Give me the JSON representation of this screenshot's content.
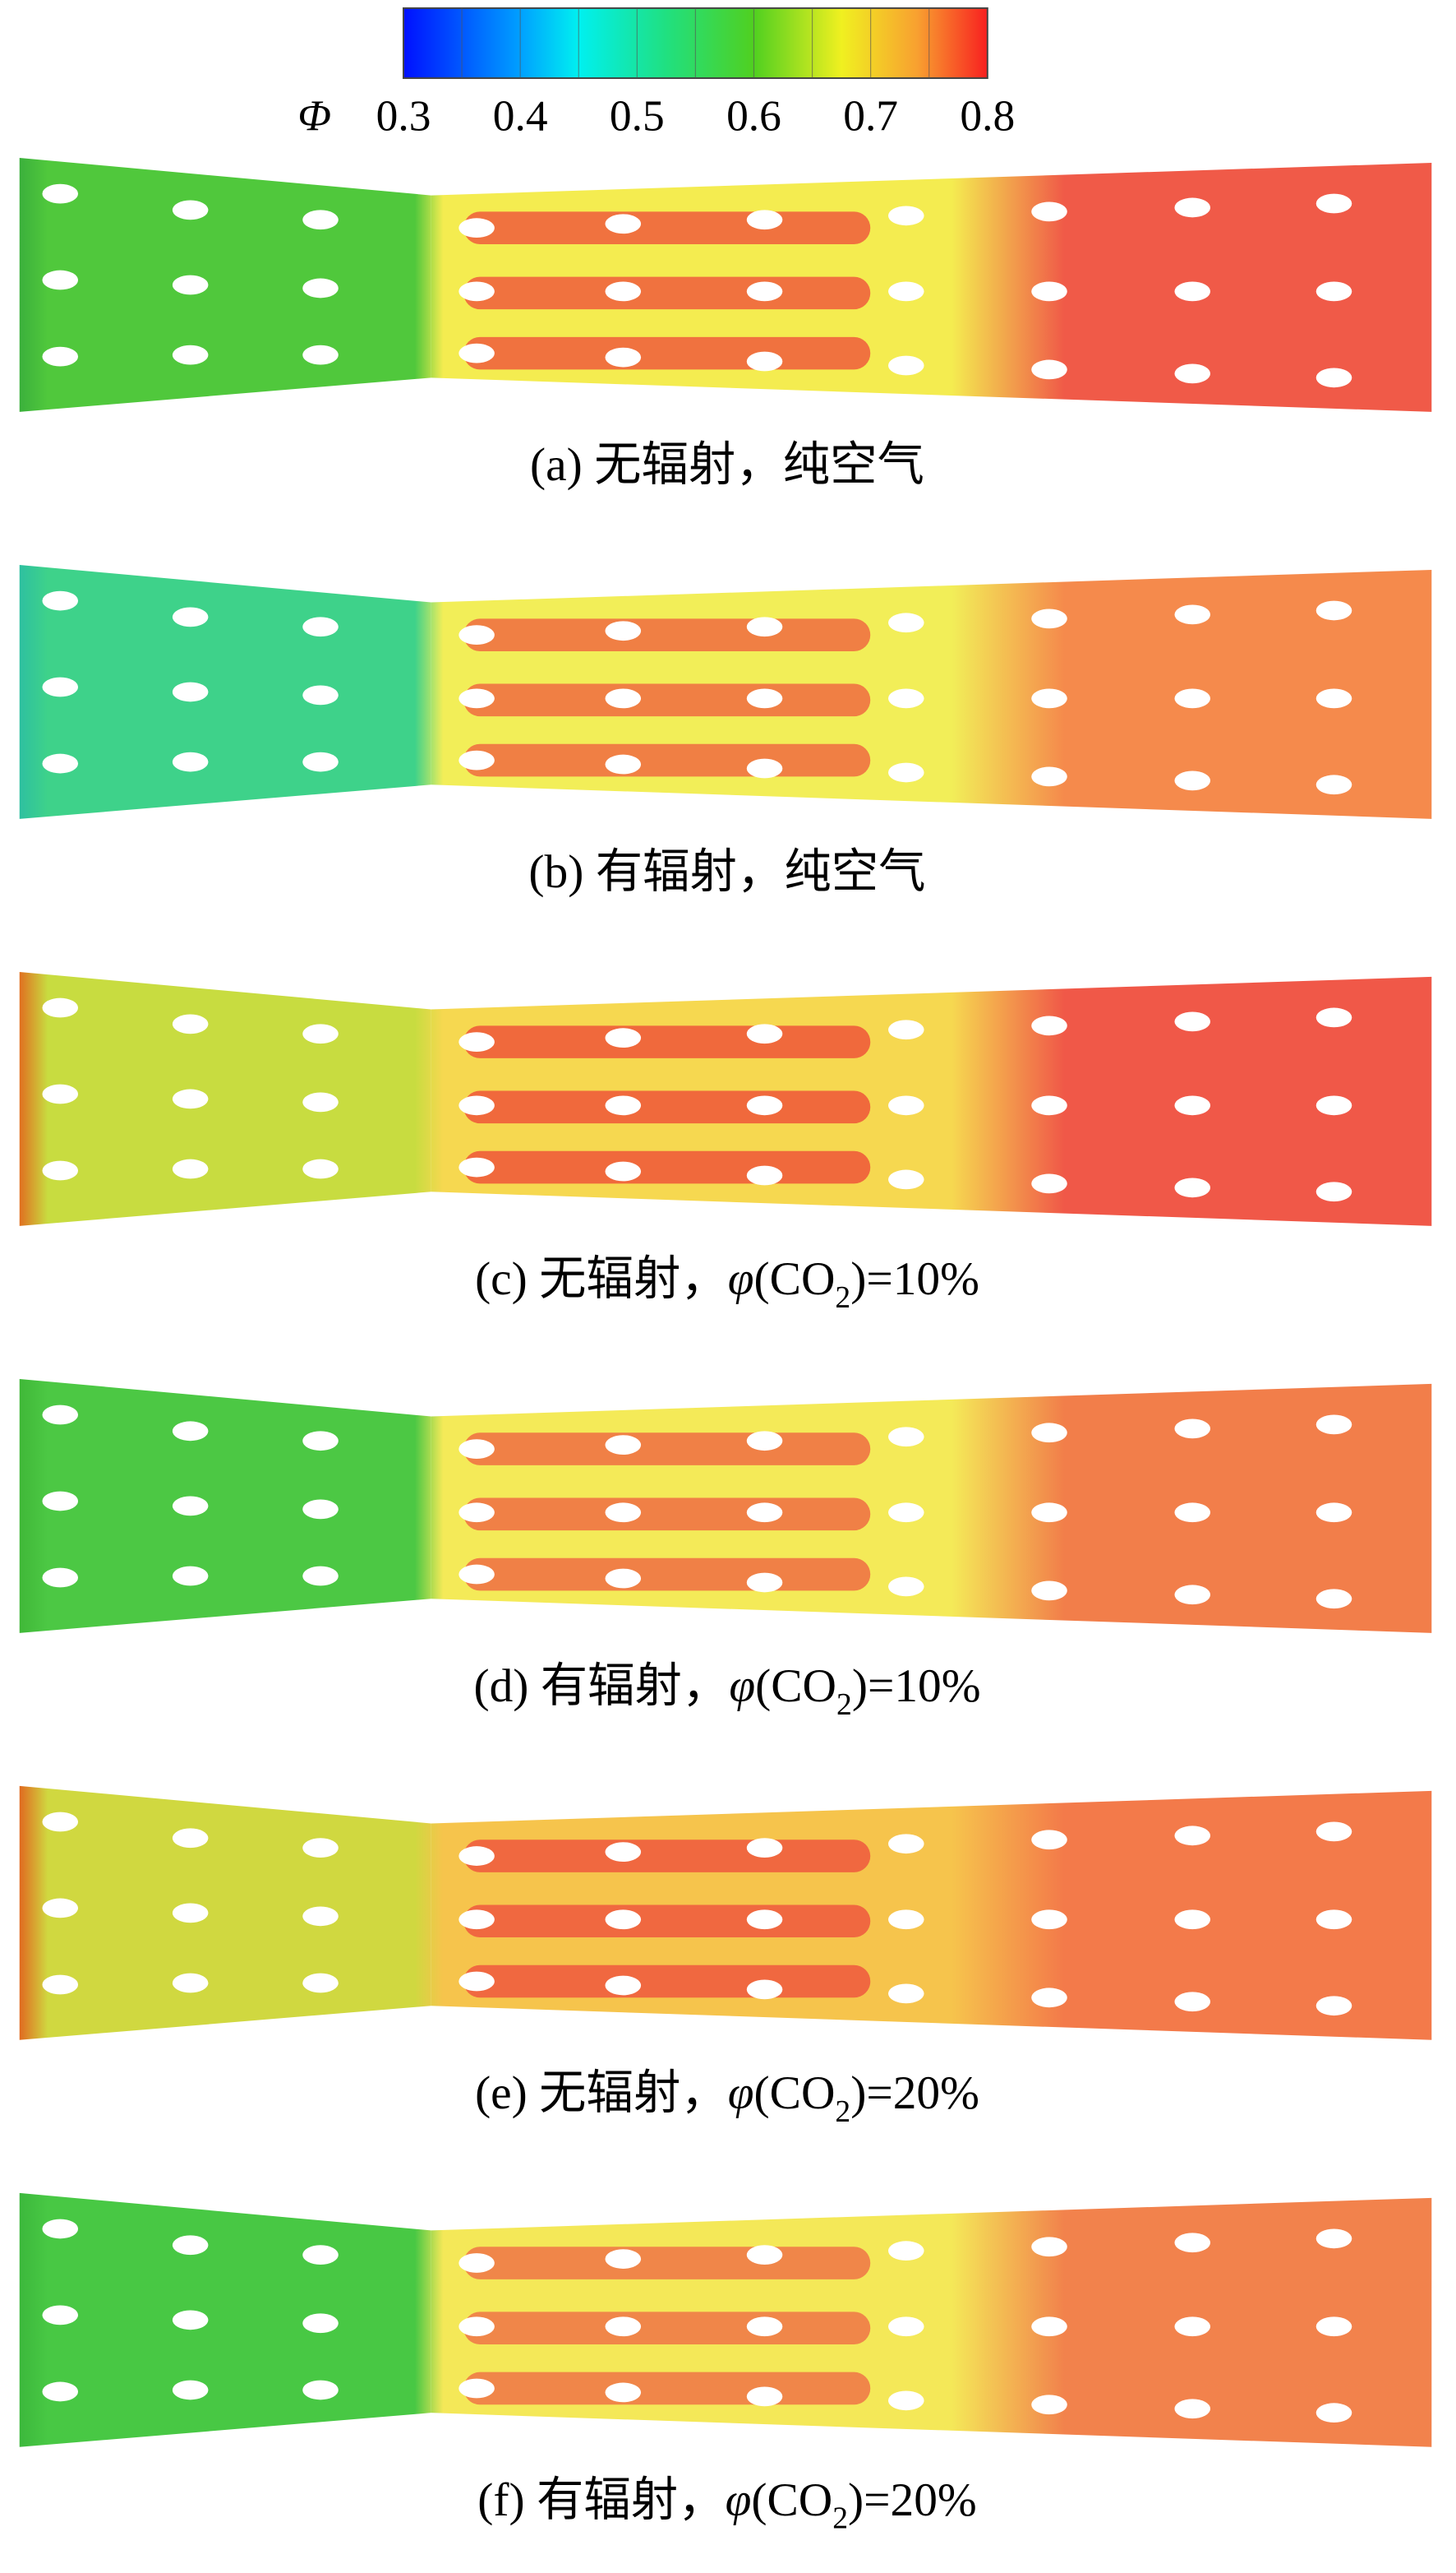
{
  "colorbar": {
    "symbol": "Φ",
    "ticks": [
      0.3,
      0.4,
      0.5,
      0.6,
      0.7,
      0.8
    ]
  },
  "panels": [
    {
      "caption": {
        "text": "(a) 无辐射，纯空气"
      }
    },
    {
      "caption": {
        "text": "(b) 有辐射，纯空气"
      }
    },
    {
      "caption": {
        "text": "(c) 无辐射，",
        "symbol": "φ",
        "formula": "(CO",
        "subscript": "2",
        "suffix": ")=10%"
      }
    },
    {
      "caption": {
        "text": "(d) 有辐射，",
        "symbol": "φ",
        "formula": "(CO",
        "subscript": "2",
        "suffix": ")=10%"
      }
    },
    {
      "caption": {
        "text": "(e) 无辐射，",
        "symbol": "φ",
        "formula": "(CO",
        "subscript": "2",
        "suffix": ")=20%"
      }
    },
    {
      "caption": {
        "text": "(f) 有辐射，",
        "symbol": "φ",
        "formula": "(CO",
        "subscript": "2",
        "suffix": ")=20%"
      }
    }
  ]
}
